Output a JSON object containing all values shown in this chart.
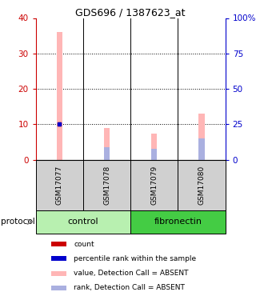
{
  "title": "GDS696 / 1387623_at",
  "samples": [
    "GSM17077",
    "GSM17078",
    "GSM17079",
    "GSM17080"
  ],
  "pink_bar_values": [
    36,
    9,
    7.5,
    13
  ],
  "blue_bar_values": [
    0,
    3.5,
    3,
    6
  ],
  "red_dot_value": 10,
  "red_dot_index": 0,
  "blue_dot_value": 10,
  "blue_dot_index": 0,
  "ylim_left": [
    0,
    40
  ],
  "ylim_right": [
    0,
    100
  ],
  "yticks_left": [
    0,
    10,
    20,
    30,
    40
  ],
  "yticks_right": [
    0,
    25,
    50,
    75,
    100
  ],
  "ytick_labels_right": [
    "0",
    "25",
    "50",
    "75",
    "100%"
  ],
  "left_axis_color": "#cc0000",
  "right_axis_color": "#0000cc",
  "bar_width": 0.12,
  "pink_color": "#ffb6b6",
  "light_blue_color": "#aab0e0",
  "red_dot_color": "#cc0000",
  "blue_dot_color": "#0000cc",
  "legend_items": [
    {
      "color": "#cc0000",
      "label": "count"
    },
    {
      "color": "#0000cc",
      "label": "percentile rank within the sample"
    },
    {
      "color": "#ffb6b6",
      "label": "value, Detection Call = ABSENT"
    },
    {
      "color": "#aab0e0",
      "label": "rank, Detection Call = ABSENT"
    }
  ],
  "control_color": "#b8f0b0",
  "fibronectin_color": "#44cc44",
  "sample_box_color": "#d0d0d0",
  "protocol_label": "protocol",
  "groups_info": [
    {
      "name": "control",
      "start": 0,
      "end": 1
    },
    {
      "name": "fibronectin",
      "start": 2,
      "end": 3
    }
  ]
}
